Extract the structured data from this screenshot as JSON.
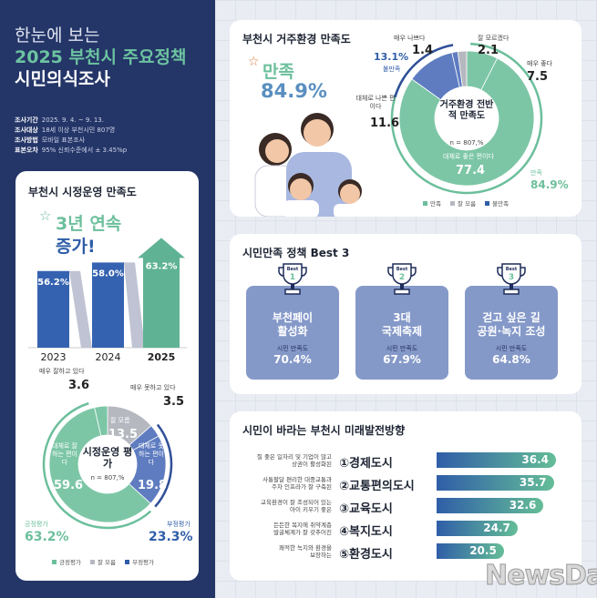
{
  "header": {
    "line1": "한눈에 보는",
    "line2": "2025 부천시 주요정책",
    "line3": "시민의식조사"
  },
  "survey_info": [
    {
      "key": "조사기간",
      "value": "2025. 9. 4. ~ 9. 13."
    },
    {
      "key": "조사대상",
      "value": "18세 이상 부천시민 807명"
    },
    {
      "key": "조사방법",
      "value": "모바일 표본조사"
    },
    {
      "key": "표본오차",
      "value": "95% 신뢰수준에서 ± 3.45%p"
    }
  ],
  "colors": {
    "navy": "#243568",
    "green": "#6cbf9c",
    "blue": "#5873b8",
    "gray": "#b5b8bf",
    "best_card": "#8599c9"
  },
  "chart_data": [
    {
      "type": "bar",
      "title": "부천시 시정운영 만족도",
      "headline": "3년 연속",
      "headline2": "증가!",
      "categories": [
        "2023",
        "2024",
        "2025"
      ],
      "values": [
        56.2,
        58.0,
        63.2
      ],
      "value_labels": [
        "56.2%",
        "58.0%",
        "63.2%"
      ],
      "ylim": [
        40,
        65
      ]
    },
    {
      "type": "pie",
      "title": "시정운영 평가",
      "subtitle": "n = 807,%",
      "segments": [
        {
          "label": "잘 모름",
          "value": 13.5,
          "group": "잘 모름"
        },
        {
          "label": "매우 못하고 있다",
          "value": 3.5,
          "group": "부정평가"
        },
        {
          "label": "대체로 못하는 편이다",
          "value": 19.8,
          "group": "부정평가"
        },
        {
          "label": "대체로 잘하는 편이다",
          "value": 59.6,
          "group": "긍정평가"
        },
        {
          "label": "매우 잘하고 있다",
          "value": 3.6,
          "group": "긍정평가"
        }
      ],
      "groups": [
        {
          "name": "긍정평가",
          "total": "63.2%"
        },
        {
          "name": "부정평가",
          "total": "23.3%"
        }
      ],
      "legend": [
        "긍정평가",
        "잘 모름",
        "부정평가"
      ]
    },
    {
      "type": "pie",
      "title": "부천시 거주환경 만족도",
      "center_title": "거주환경 전반적 만족도",
      "subtitle": "n = 807,%",
      "headline_label": "만족",
      "headline_value": "84.9%",
      "segments": [
        {
          "label": "매우 좋다",
          "value": 7.5,
          "group": "만족"
        },
        {
          "label": "대체로 좋은 편이다",
          "value": 77.4,
          "group": "만족"
        },
        {
          "label": "대체로 나쁜 편이다",
          "value": 11.6,
          "group": "불만족"
        },
        {
          "label": "매우 나쁘다",
          "value": 1.4,
          "group": "불만족"
        },
        {
          "label": "잘 모르겠다",
          "value": 2.1,
          "group": "잘 모름"
        }
      ],
      "groups": [
        {
          "name": "만족",
          "total": "84.9%"
        },
        {
          "name": "불만족",
          "total": "13.1%"
        }
      ],
      "legend": [
        "만족",
        "잘 모름",
        "불만족"
      ]
    },
    {
      "type": "bar",
      "orientation": "horizontal",
      "title": "시민이 바라는 부천시 미래발전방향",
      "categories": [
        "①경제도시",
        "②교통편의도시",
        "③교육도시",
        "④복지도시",
        "⑤환경도시"
      ],
      "descriptions": [
        "질 좋은 일자리 및 기업이 많고\n상권이 활성화된",
        "사통팔달 편리한 대중교통과\n주차 인프라가 잘 구축된",
        "교육환경이 잘 조성되어 있는\n아이 키우기 좋은",
        "든든한 복지에 취약계층\n발굴체계가 잘 갖추어진",
        "쾌적한 녹지와 환경을\n보장하는"
      ],
      "values": [
        36.4,
        35.7,
        32.6,
        24.7,
        20.5
      ],
      "value_labels": [
        "36.4",
        "35.7",
        "32.6",
        "24.7",
        "20.5"
      ]
    }
  ],
  "best3": {
    "title": "시민만족 정책 Best 3",
    "badge": "Best",
    "sat_label": "시민 만족도",
    "items": [
      {
        "rank": "1",
        "name": "부천페이\n활성화",
        "value": "70.4%"
      },
      {
        "rank": "2",
        "name": "3대\n국제축제",
        "value": "67.9%"
      },
      {
        "rank": "3",
        "name": "걷고 싶은 길\n공원·녹지 조성",
        "value": "64.8%"
      }
    ]
  },
  "watermark": "NewsDa"
}
